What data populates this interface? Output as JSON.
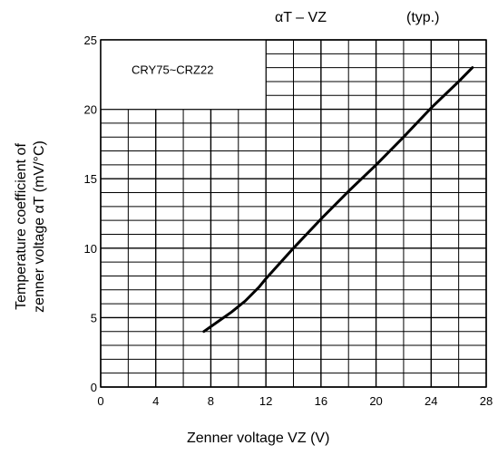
{
  "chart_data": {
    "type": "line",
    "title": "αT – VZ",
    "note": "(typ.)",
    "box_label": "CRY75~CRZ22",
    "xlabel": "Zenner voltage VZ (V)",
    "ylabel_line1": "Temperature coefficient of",
    "ylabel_line2": "zenner voltage αT (mV/°C)",
    "xlim": [
      0,
      28
    ],
    "ylim": [
      0,
      25
    ],
    "x_ticks": [
      0,
      4,
      8,
      12,
      16,
      20,
      24,
      28
    ],
    "y_ticks": [
      0,
      5,
      10,
      15,
      20,
      25
    ],
    "grid": true,
    "series": [
      {
        "x": [
          7.5,
          8.5,
          9.5,
          10.5,
          11.5,
          12.0,
          14.0,
          16.0,
          18.0,
          20.0,
          22.0,
          24.0,
          26.0,
          27.0
        ],
        "y": [
          4.0,
          4.7,
          5.4,
          6.2,
          7.2,
          7.8,
          10.0,
          12.1,
          14.1,
          16.0,
          18.0,
          20.1,
          22.0,
          23.0
        ]
      }
    ],
    "colors": {
      "line": "#000000",
      "grid": "#000000",
      "axis": "#000000"
    }
  }
}
